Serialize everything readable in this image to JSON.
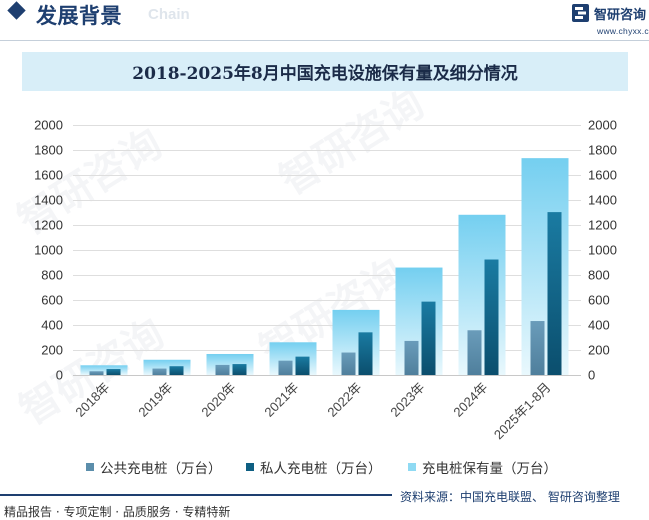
{
  "header": {
    "title": "发展背景",
    "watermark": "Chain",
    "logo_name": "智研咨询",
    "logo_url": "www.chyxx.com"
  },
  "watermark_text": "智研咨询",
  "chart_data": {
    "type": "bar",
    "title": "2018-2025年8月中国充电设施保有量及细分情况",
    "categories": [
      "2018年",
      "2019年",
      "2020年",
      "2021年",
      "2022年",
      "2023年",
      "2024年",
      "2025年1-8月"
    ],
    "series": [
      {
        "name": "公共充电桩（万台）",
        "values": [
          30.0,
          51.6,
          80.7,
          114.7,
          179.7,
          272.6,
          357.9,
          431.7
        ],
        "color": "#5b8eab"
      },
      {
        "name": "私人充电桩（万台）",
        "values": [
          47.7,
          70.3,
          87.4,
          147.0,
          341.3,
          587.0,
          923.9,
          1303.1
        ],
        "color": "#0e5f82"
      },
      {
        "name": "充电桩保有量（万台）",
        "values": [
          77.7,
          121.9,
          168.1,
          261.7,
          521.0,
          859.6,
          1281.8,
          1734.8
        ],
        "color": "#8fdaf3"
      }
    ],
    "xlabel": "",
    "ylabel": "",
    "ylim": [
      0,
      2000
    ],
    "yticks": [
      0,
      200,
      400,
      600,
      800,
      1000,
      1200,
      1400,
      1600,
      1800,
      2000
    ],
    "y2lim": [
      0,
      2000
    ],
    "grid": true,
    "legend_position": "bottom"
  },
  "footer": {
    "source": "资料来源：中国充电联盟、 智研咨询整理",
    "tagline": "精品报告 · 专项定制 · 品质服务 · 专精特新"
  }
}
